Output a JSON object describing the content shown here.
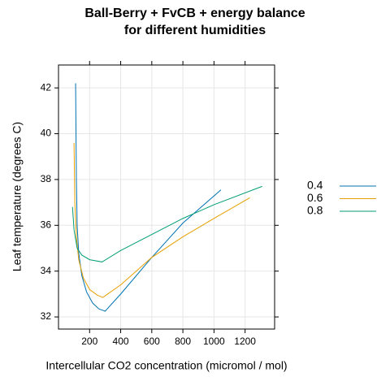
{
  "chart_data": {
    "type": "line",
    "title": [
      "Ball-Berry + FvCB + energy balance",
      "for different humidities"
    ],
    "x_label": "Intercellular CO2 concentration (micromol / mol)",
    "y_label": "Leaf temperature (degrees C)",
    "xlim": [
      0,
      1390
    ],
    "ylim": [
      31.47,
      43.0
    ],
    "xticks": [
      200,
      400,
      600,
      800,
      1000,
      1200
    ],
    "yticks": [
      32,
      34,
      36,
      38,
      40,
      42
    ],
    "grid": true,
    "legend_position": "right",
    "series": [
      {
        "name": "0.4",
        "color": "#0072B2",
        "x": [
          110,
          115,
          120,
          130,
          150,
          180,
          220,
          260,
          300,
          400,
          600,
          800,
          1045
        ],
        "values": [
          42.2,
          38,
          36,
          34.8,
          33.8,
          33.1,
          32.6,
          32.35,
          32.25,
          33.0,
          34.6,
          36.1,
          37.55
        ]
      },
      {
        "name": "0.6",
        "color": "#E69F00",
        "x": [
          100,
          105,
          115,
          130,
          160,
          200,
          250,
          285,
          400,
          600,
          800,
          1000,
          1230
        ],
        "values": [
          39.6,
          37,
          35.5,
          34.5,
          33.7,
          33.2,
          32.95,
          32.85,
          33.4,
          34.6,
          35.5,
          36.3,
          37.2
        ]
      },
      {
        "name": "0.8",
        "color": "#009E73",
        "x": [
          90,
          100,
          120,
          150,
          200,
          280,
          400,
          600,
          800,
          1000,
          1310
        ],
        "values": [
          36.8,
          35.8,
          35.0,
          34.7,
          34.5,
          34.4,
          34.9,
          35.6,
          36.3,
          36.9,
          37.7
        ]
      }
    ]
  }
}
